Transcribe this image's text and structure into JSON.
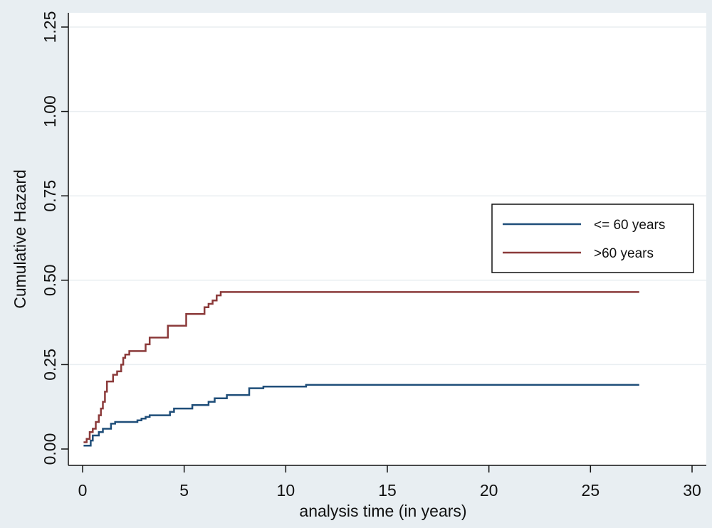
{
  "chart_data": {
    "type": "line",
    "step": true,
    "xlabel": "analysis time (in years)",
    "ylabel": "Cumulative Hazard",
    "xlim": [
      0,
      30
    ],
    "ylim": [
      0,
      1.25
    ],
    "xticks": [
      0,
      5,
      10,
      15,
      20,
      25,
      30
    ],
    "yticks": [
      0,
      0.25,
      0.5,
      0.75,
      1.0,
      1.25
    ],
    "xtick_labels": [
      "0",
      "5",
      "10",
      "15",
      "20",
      "25",
      "30"
    ],
    "ytick_labels": [
      "0.00",
      "0.25",
      "0.50",
      "0.75",
      "1.00",
      "1.25"
    ],
    "grid": "horizontal",
    "legend_position": "right",
    "series": [
      {
        "name": "<= 60 years",
        "color": "#1f4e79",
        "x": [
          0.05,
          0.3,
          0.4,
          0.5,
          0.8,
          1.0,
          1.4,
          1.6,
          2.7,
          2.9,
          3.1,
          3.3,
          3.5,
          4.3,
          4.5,
          5.4,
          5.8,
          6.2,
          6.5,
          7.1,
          7.5,
          8.2,
          8.9,
          11.0,
          27.4
        ],
        "y": [
          0.01,
          0.01,
          0.025,
          0.04,
          0.05,
          0.06,
          0.075,
          0.08,
          0.085,
          0.09,
          0.095,
          0.1,
          0.1,
          0.11,
          0.12,
          0.13,
          0.13,
          0.14,
          0.15,
          0.16,
          0.16,
          0.18,
          0.185,
          0.19,
          0.19
        ]
      },
      {
        "name": ">60 years",
        "color": "#8b3a3a",
        "x": [
          0.05,
          0.2,
          0.35,
          0.5,
          0.65,
          0.8,
          0.9,
          1.0,
          1.1,
          1.2,
          1.3,
          1.5,
          1.7,
          1.9,
          2.0,
          2.1,
          2.3,
          2.5,
          3.1,
          3.3,
          3.6,
          4.2,
          4.4,
          5.1,
          5.3,
          6.0,
          6.2,
          6.4,
          6.6,
          6.8,
          27.4
        ],
        "y": [
          0.02,
          0.03,
          0.05,
          0.06,
          0.08,
          0.1,
          0.12,
          0.14,
          0.17,
          0.2,
          0.2,
          0.22,
          0.23,
          0.25,
          0.27,
          0.28,
          0.29,
          0.29,
          0.31,
          0.33,
          0.33,
          0.365,
          0.365,
          0.4,
          0.4,
          0.42,
          0.43,
          0.44,
          0.455,
          0.465,
          0.465
        ]
      }
    ]
  }
}
